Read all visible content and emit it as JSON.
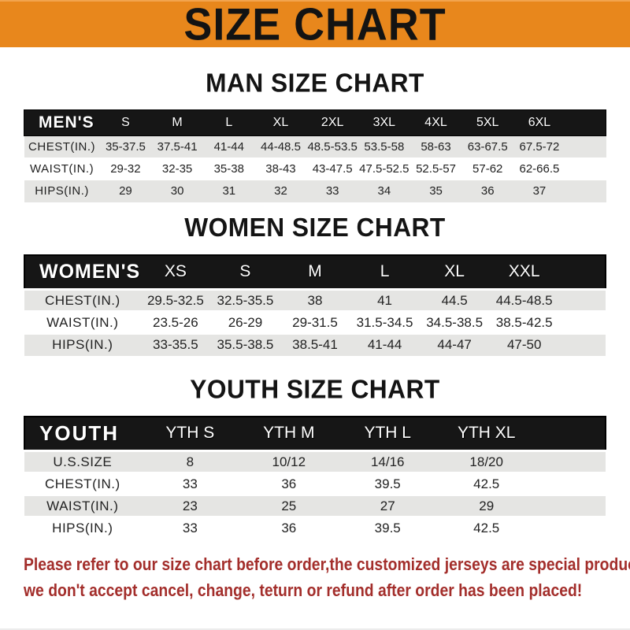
{
  "banner": {
    "title": "SIZE CHART"
  },
  "colors": {
    "banner_bg": "#E8871C",
    "banner_text": "#131313",
    "bar_bg": "#161616",
    "bar_text": "#FFFFFF",
    "stripe": "#E5E5E3",
    "title_text": "#141414",
    "cell_text": "#222222",
    "footer_red": "#A32E2B"
  },
  "tables": [
    {
      "id": "men",
      "title": "MAN SIZE CHART",
      "header_label": "MEN'S",
      "columns": [
        "S",
        "M",
        "L",
        "XL",
        "2XL",
        "3XL",
        "4XL",
        "5XL",
        "6XL"
      ],
      "rows": [
        {
          "label": "CHEST(IN.)",
          "values": [
            "35-37.5",
            "37.5-41",
            "41-44",
            "44-48.5",
            "48.5-53.5",
            "53.5-58",
            "58-63",
            "63-67.5",
            "67.5-72"
          ]
        },
        {
          "label": "WAIST(IN.)",
          "values": [
            "29-32",
            "32-35",
            "35-38",
            "38-43",
            "43-47.5",
            "47.5-52.5",
            "52.5-57",
            "57-62",
            "62-66.5"
          ]
        },
        {
          "label": "HIPS(IN.)",
          "values": [
            "29",
            "30",
            "31",
            "32",
            "33",
            "34",
            "35",
            "36",
            "37"
          ]
        }
      ]
    },
    {
      "id": "women",
      "title": "WOMEN SIZE CHART",
      "header_label": "WOMEN'S",
      "columns": [
        "XS",
        "S",
        "M",
        "L",
        "XL",
        "XXL"
      ],
      "rows": [
        {
          "label": "CHEST(IN.)",
          "values": [
            "29.5-32.5",
            "32.5-35.5",
            "38",
            "41",
            "44.5",
            "44.5-48.5"
          ]
        },
        {
          "label": "WAIST(IN.)",
          "values": [
            "23.5-26",
            "26-29",
            "29-31.5",
            "31.5-34.5",
            "34.5-38.5",
            "38.5-42.5"
          ]
        },
        {
          "label": "HIPS(IN.)",
          "values": [
            "33-35.5",
            "35.5-38.5",
            "38.5-41",
            "41-44",
            "44-47",
            "47-50"
          ]
        }
      ]
    },
    {
      "id": "youth",
      "title": "YOUTH SIZE CHART",
      "header_label": "YOUTH",
      "columns": [
        "YTH S",
        "YTH M",
        "YTH L",
        "YTH XL"
      ],
      "rows": [
        {
          "label": "U.S.SIZE",
          "values": [
            "8",
            "10/12",
            "14/16",
            "18/20"
          ]
        },
        {
          "label": "CHEST(IN.)",
          "values": [
            "33",
            "36",
            "39.5",
            "42.5"
          ]
        },
        {
          "label": "WAIST(IN.)",
          "values": [
            "23",
            "25",
            "27",
            "29"
          ]
        },
        {
          "label": "HIPS(IN.)",
          "values": [
            "33",
            "36",
            "39.5",
            "42.5"
          ]
        }
      ]
    }
  ],
  "footer": {
    "line1": "Please refer to our size chart before order,the customized jerseys are special products,",
    "line2": "we don't accept cancel, change, teturn or refund after order has been placed!"
  }
}
